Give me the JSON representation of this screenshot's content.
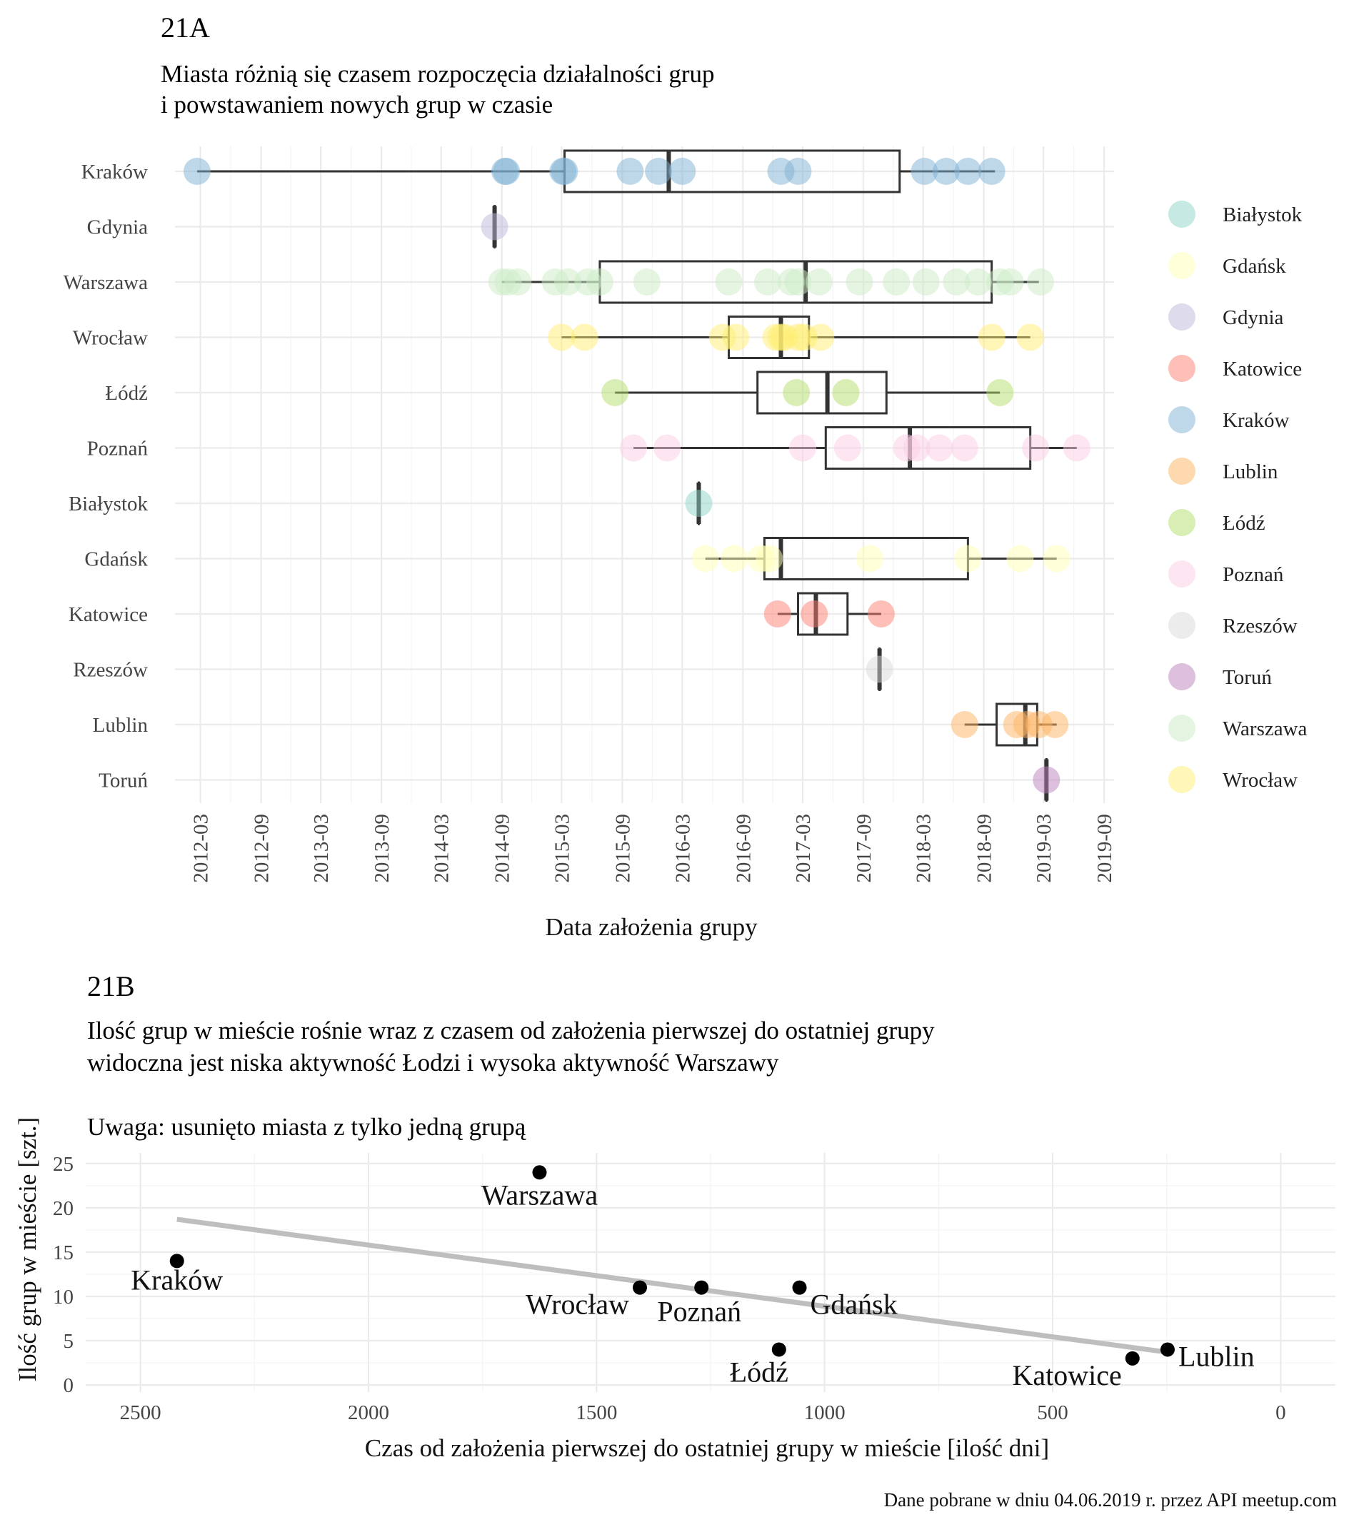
{
  "chart_data": [
    {
      "type": "boxplot",
      "panel_label": "21A",
      "title": "Miasta różnią się czasem rozpoczęcia działalności grup",
      "subtitle": "i powstawaniem nowych grup w czasie",
      "xlabel": "Data założenia grupy",
      "ylabel": "",
      "x_ticks": [
        "2012-03",
        "2012-09",
        "2013-03",
        "2013-09",
        "2014-03",
        "2014-09",
        "2015-03",
        "2015-09",
        "2016-03",
        "2016-09",
        "2017-03",
        "2017-09",
        "2018-03",
        "2018-09",
        "2019-03",
        "2019-09"
      ],
      "xlim": [
        "2011-12-15",
        "2019-10-01"
      ],
      "grid": true,
      "legend_position": "right",
      "categories": [
        "Kraków",
        "Gdynia",
        "Warszawa",
        "Wrocław",
        "Łódź",
        "Poznań",
        "Białystok",
        "Gdańsk",
        "Katowice",
        "Rzeszów",
        "Lublin",
        "Toruń"
      ],
      "legend": [
        "Białystok",
        "Gdańsk",
        "Gdynia",
        "Katowice",
        "Kraków",
        "Lublin",
        "Łódź",
        "Poznań",
        "Rzeszów",
        "Toruń",
        "Warszawa",
        "Wrocław"
      ],
      "colors": {
        "Białystok": "#8DD3C7",
        "Gdańsk": "#FFFFB3",
        "Gdynia": "#BEBADA",
        "Katowice": "#FB8072",
        "Kraków": "#80B1D3",
        "Lublin": "#FDB462",
        "Łódź": "#B3DE69",
        "Poznań": "#FCCDE5",
        "Rzeszów": "#D9D9D9",
        "Toruń": "#BC80BD",
        "Warszawa": "#CCEBC5",
        "Wrocław": "#FFED6F"
      },
      "series": [
        {
          "name": "Kraków",
          "box": {
            "min": "2012-02-20",
            "q1": "2015-03-10",
            "median": "2016-01-20",
            "q3": "2017-12-20",
            "max": "2018-10-05"
          },
          "points": [
            "2012-02-20",
            "2014-09-10",
            "2014-09-15",
            "2015-03-05",
            "2015-03-10",
            "2015-09-25",
            "2015-12-20",
            "2016-03-01",
            "2016-12-25",
            "2017-02-15",
            "2018-03-05",
            "2018-05-10",
            "2018-07-15",
            "2018-09-25"
          ]
        },
        {
          "name": "Gdynia",
          "box": {
            "min": "2014-08-10",
            "q1": "2014-08-10",
            "median": "2014-08-10",
            "q3": "2014-08-10",
            "max": "2014-08-10"
          },
          "points": [
            "2014-08-10"
          ]
        },
        {
          "name": "Warszawa",
          "box": {
            "min": "2014-09-01",
            "q1": "2015-06-25",
            "median": "2017-03-10",
            "q3": "2018-09-25",
            "max": "2019-02-15"
          },
          "points": [
            "2014-09-01",
            "2014-09-20",
            "2014-10-20",
            "2015-02-10",
            "2015-03-20",
            "2015-05-20",
            "2015-06-25",
            "2015-11-15",
            "2016-07-20",
            "2016-11-15",
            "2017-01-25",
            "2017-02-15",
            "2017-04-20",
            "2017-08-20",
            "2017-12-10",
            "2018-03-10",
            "2018-06-10",
            "2018-08-15",
            "2018-10-20",
            "2018-11-20",
            "2019-02-20"
          ]
        },
        {
          "name": "Wrocław",
          "box": {
            "min": "2015-03-01",
            "q1": "2016-07-20",
            "median": "2016-12-25",
            "q3": "2017-03-20",
            "max": "2019-01-20"
          },
          "points": [
            "2015-03-01",
            "2015-05-10",
            "2016-07-01",
            "2016-08-10",
            "2016-12-10",
            "2016-12-25",
            "2017-01-05",
            "2017-02-15",
            "2017-03-05",
            "2017-04-25",
            "2018-09-25",
            "2019-01-20"
          ]
        },
        {
          "name": "Łódź",
          "box": {
            "min": "2015-08-10",
            "q1": "2016-10-15",
            "median": "2017-05-15",
            "q3": "2017-11-10",
            "max": "2018-10-20"
          },
          "points": [
            "2015-08-10",
            "2017-02-10",
            "2017-07-10",
            "2018-10-20"
          ]
        },
        {
          "name": "Poznań",
          "box": {
            "min": "2015-10-05",
            "q1": "2017-05-10",
            "median": "2018-01-20",
            "q3": "2019-01-20",
            "max": "2019-06-10"
          },
          "points": [
            "2015-10-05",
            "2016-01-15",
            "2017-03-01",
            "2017-07-15",
            "2018-01-10",
            "2018-02-10",
            "2018-04-20",
            "2018-07-05",
            "2019-02-05",
            "2019-06-10"
          ]
        },
        {
          "name": "Białystok",
          "box": {
            "min": "2016-04-20",
            "q1": "2016-04-20",
            "median": "2016-04-20",
            "q3": "2016-04-20",
            "max": "2016-04-20"
          },
          "points": [
            "2016-04-20"
          ]
        },
        {
          "name": "Gdańsk",
          "box": {
            "min": "2016-05-10",
            "q1": "2016-11-05",
            "median": "2016-12-25",
            "q3": "2018-07-15",
            "max": "2019-04-10"
          },
          "points": [
            "2016-05-10",
            "2016-08-05",
            "2016-10-25",
            "2016-11-20",
            "2017-09-20",
            "2018-07-15",
            "2018-12-20",
            "2019-04-10"
          ]
        },
        {
          "name": "Katowice",
          "box": {
            "min": "2016-12-15",
            "q1": "2017-02-15",
            "median": "2017-04-10",
            "q3": "2017-07-15",
            "max": "2017-10-25"
          },
          "points": [
            "2016-12-15",
            "2017-04-05",
            "2017-10-25"
          ]
        },
        {
          "name": "Rzeszów",
          "box": {
            "min": "2017-10-20",
            "q1": "2017-10-20",
            "median": "2017-10-20",
            "q3": "2017-10-20",
            "max": "2017-10-20"
          },
          "points": [
            "2017-10-20"
          ]
        },
        {
          "name": "Lublin",
          "box": {
            "min": "2018-07-05",
            "q1": "2018-10-10",
            "median": "2019-01-05",
            "q3": "2019-02-10",
            "max": "2019-04-10"
          },
          "points": [
            "2018-07-05",
            "2018-12-10",
            "2019-01-10",
            "2019-02-15",
            "2019-04-05"
          ]
        },
        {
          "name": "Toruń",
          "box": {
            "min": "2019-03-10",
            "q1": "2019-03-10",
            "median": "2019-03-10",
            "q3": "2019-03-10",
            "max": "2019-03-10"
          },
          "points": [
            "2019-03-10"
          ]
        }
      ]
    },
    {
      "type": "scatter",
      "panel_label": "21B",
      "title": "Ilość grup w mieście rośnie wraz z czasem od założenia pierwszej do ostatniej grupy",
      "subtitle": "widoczna jest niska aktywność Łodzi i wysoka aktywność Warszawy",
      "note": "Uwaga: usunięto miasta z tylko jedną grupą",
      "xlabel": "Czas od założenia pierwszej do ostatniej grupy w mieście [ilość dni]",
      "ylabel": "Ilość grup w mieście [szt.]",
      "x_reversed": true,
      "xlim": [
        2620,
        -120
      ],
      "ylim": [
        -0.8,
        26.2
      ],
      "x_ticks": [
        2500,
        2000,
        1500,
        1000,
        500,
        0
      ],
      "y_ticks": [
        0,
        5,
        10,
        15,
        20,
        25
      ],
      "grid": true,
      "points": [
        {
          "label": "Kraków",
          "x": 2420,
          "y": 14
        },
        {
          "label": "Warszawa",
          "x": 1625,
          "y": 24
        },
        {
          "label": "Wrocław",
          "x": 1405,
          "y": 11
        },
        {
          "label": "Poznań",
          "x": 1270,
          "y": 11
        },
        {
          "label": "Gdańsk",
          "x": 1055,
          "y": 11
        },
        {
          "label": "Łódź",
          "x": 1100,
          "y": 4
        },
        {
          "label": "Katowice",
          "x": 325,
          "y": 3
        },
        {
          "label": "Lublin",
          "x": 248,
          "y": 4
        }
      ],
      "trend": {
        "x": [
          2420,
          248
        ],
        "y": [
          18.7,
          3.7
        ],
        "color": "#BEBEBE"
      },
      "point_color": "#000000"
    }
  ],
  "caption": "Dane pobrane w dniu 04.06.2019 r. przez API meetup.com"
}
